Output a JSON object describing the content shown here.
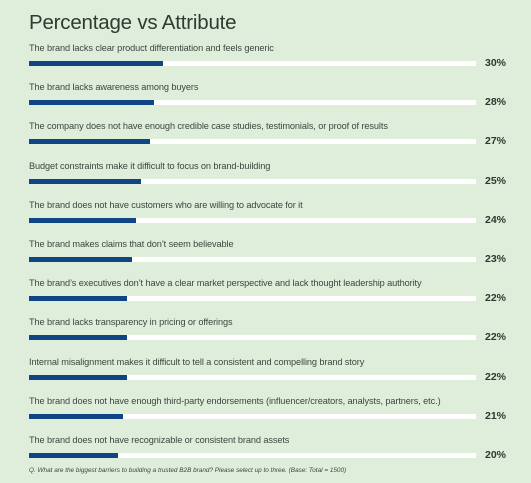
{
  "chart_data": {
    "type": "bar",
    "orientation": "horizontal",
    "title": "Percentage vs Attribute",
    "xlim": [
      0,
      100
    ],
    "value_unit": "%",
    "colors": {
      "bar": "#0f4585",
      "track": "#ffffff",
      "background": "#dfeeda"
    },
    "categories": [
      "The brand lacks clear product differentiation and feels generic",
      "The brand lacks awareness among buyers",
      "The company does not have enough credible case studies, testimonials, or proof of results",
      "Budget constraints make it difficult to focus on brand-building",
      "The brand does not have customers who are willing to advocate for it",
      "The brand makes claims that don’t seem believable",
      "The brand’s executives don’t have a clear market perspective and lack thought leadership authority",
      "The brand lacks transparency in pricing or offerings",
      "Internal misalignment makes it difficult to tell a consistent and compelling brand story",
      "The brand does not have enough third-party endorsements (influencer/creators, analysts, partners, etc.)",
      "The brand does not have recognizable or consistent brand assets"
    ],
    "values": [
      30,
      28,
      27,
      25,
      24,
      23,
      22,
      22,
      22,
      21,
      20
    ],
    "labels": [
      "30%",
      "28%",
      "27%",
      "25%",
      "24%",
      "23%",
      "22%",
      "22%",
      "22%",
      "21%",
      "20%"
    ],
    "footnote": "Q. What are the biggest barriers to building a trusted B2B brand? Please select up to three. (Base: Total = 1500)"
  }
}
